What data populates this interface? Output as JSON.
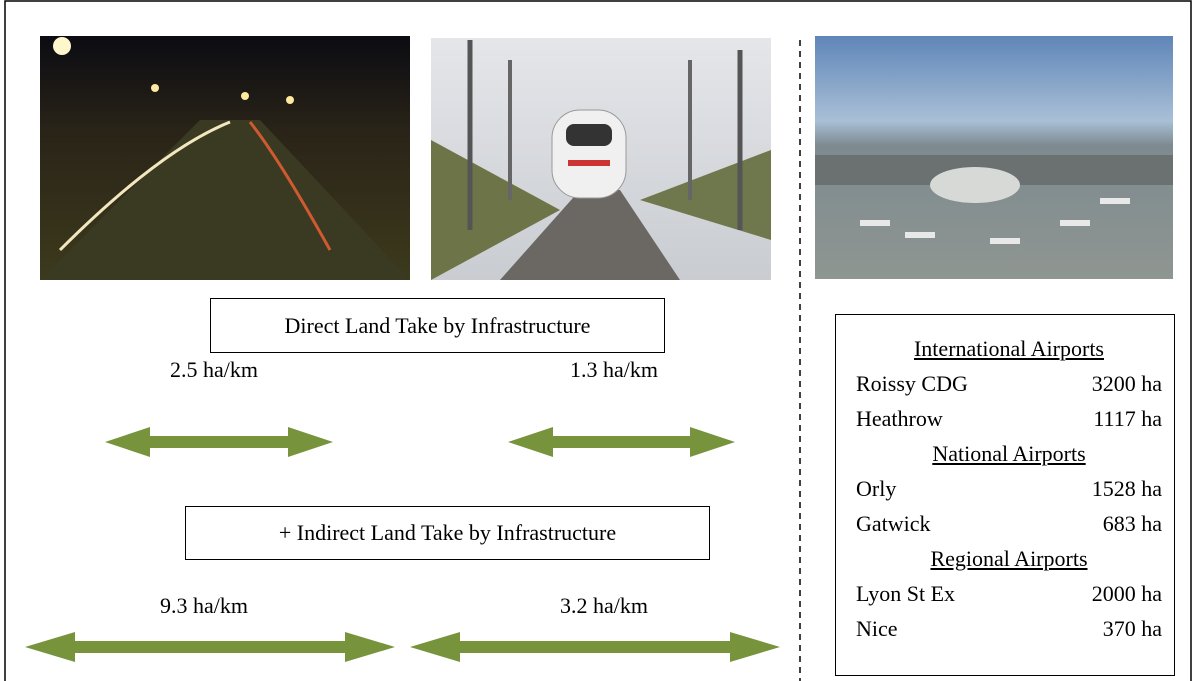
{
  "direct_label": "Direct Land Take by Infrastructure",
  "indirect_label": "+ Indirect Land Take by Infrastructure",
  "direct": {
    "road": "2.5 ha/km",
    "rail": "1.3 ha/km"
  },
  "indirect": {
    "road": "9.3 ha/km",
    "rail": "3.2 ha/km"
  },
  "airports": [
    {
      "heading": "International Airports",
      "rows": [
        [
          "Roissy CDG",
          "3200 ha"
        ],
        [
          "Heathrow",
          "1117 ha"
        ]
      ]
    },
    {
      "heading": "National Airports",
      "rows": [
        [
          "Orly",
          "1528 ha"
        ],
        [
          "Gatwick",
          "683 ha"
        ]
      ]
    },
    {
      "heading": "Regional Airports",
      "rows": [
        [
          "Lyon St Ex",
          "2000 ha"
        ],
        [
          "Nice",
          "370 ha"
        ]
      ]
    }
  ]
}
